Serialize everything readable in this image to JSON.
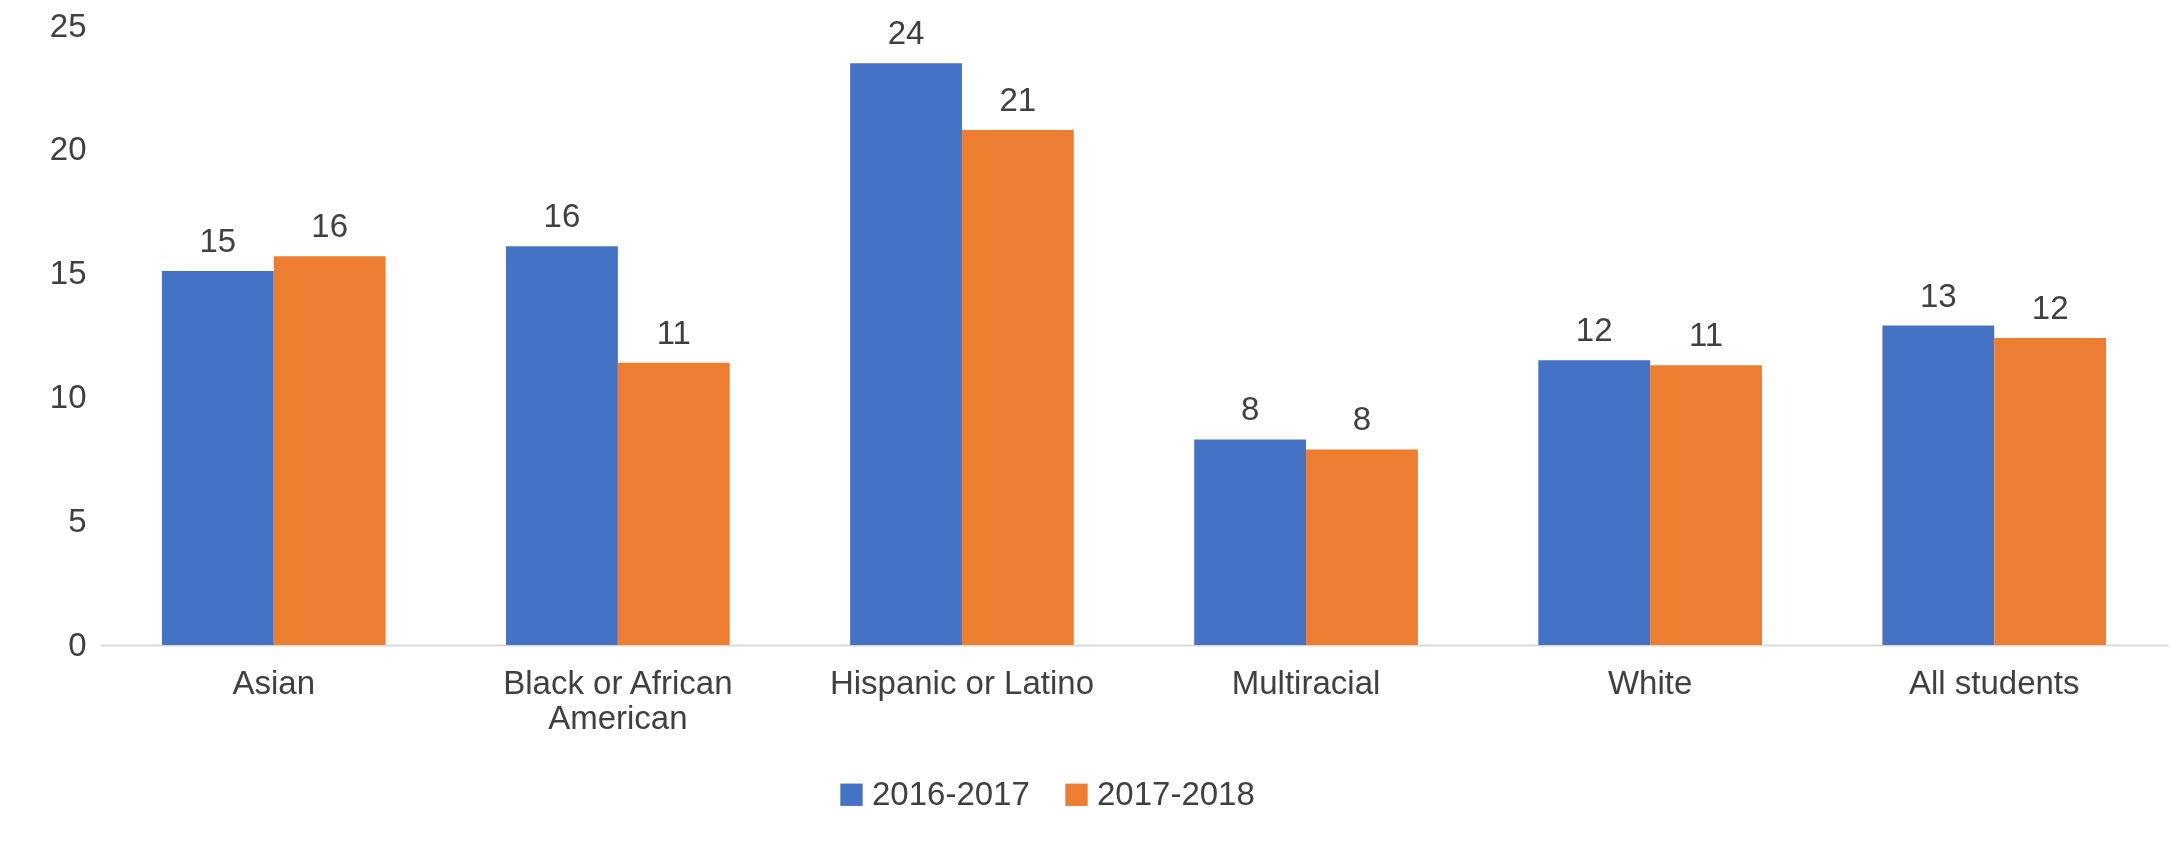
{
  "chart_data": {
    "type": "bar",
    "categories": [
      "Asian",
      "Black or African American",
      "Hispanic or Latino",
      "Multiracial",
      "White",
      "All students"
    ],
    "series": [
      {
        "name": "2016-2017",
        "color": "#4472c4",
        "values": [
          15.1,
          16.1,
          23.5,
          8.3,
          11.5,
          12.9
        ],
        "value_labels": [
          "15",
          "16",
          "24",
          "8",
          "12",
          "13"
        ]
      },
      {
        "name": "2017-2018",
        "color": "#ed7d31",
        "values": [
          15.7,
          11.4,
          20.8,
          7.9,
          11.3,
          12.4
        ],
        "value_labels": [
          "16",
          "11",
          "21",
          "8",
          "11",
          "12"
        ]
      }
    ],
    "ylim": [
      0,
      25
    ],
    "yticks": [
      0,
      5,
      10,
      15,
      20,
      25
    ],
    "grid": false,
    "legend": "bottom"
  }
}
